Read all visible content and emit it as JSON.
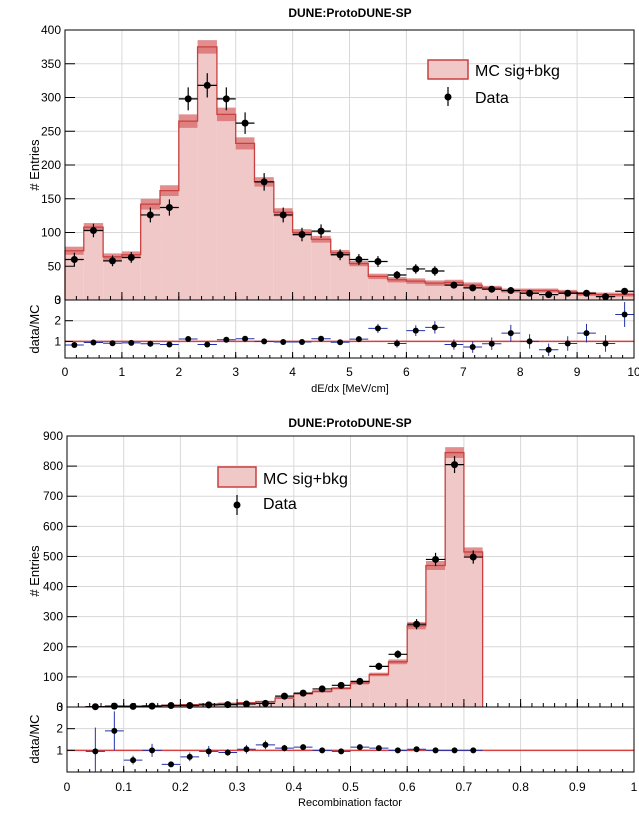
{
  "chart_data": [
    {
      "type": "bar",
      "title": "DUNE:ProtoDUNE-SP",
      "xlabel": "dE/dx [MeV/cm]",
      "ylabel": "# Entries",
      "ratio_ylabel": "data/MC",
      "xlim": [
        0,
        10
      ],
      "ylim": [
        0,
        400
      ],
      "ratio_ylim": [
        0.2,
        3
      ],
      "xticks": [
        "0",
        "1",
        "2",
        "3",
        "4",
        "5",
        "6",
        "7",
        "8",
        "9",
        "10"
      ],
      "yticks": [
        "0",
        "50",
        "100",
        "150",
        "200",
        "250",
        "300",
        "350",
        "400"
      ],
      "ratio_yticks": [
        "1",
        "2",
        "3"
      ],
      "grid": true,
      "legend_position": "top-right",
      "legend": [
        "MC sig+bkg",
        "Data"
      ],
      "bin_edges": [
        0,
        0.33,
        0.67,
        1.0,
        1.33,
        1.67,
        2.0,
        2.33,
        2.67,
        3.0,
        3.33,
        3.67,
        4.0,
        4.33,
        4.67,
        5.0,
        5.33,
        5.67,
        6.0,
        6.33,
        6.67,
        7.0,
        7.33,
        7.67,
        8.0,
        8.33,
        8.67,
        9.0,
        9.33,
        9.67,
        10.0
      ],
      "mc_values": [
        73,
        108,
        64,
        67,
        142,
        162,
        265,
        375,
        275,
        232,
        175,
        130,
        100,
        90,
        70,
        54,
        35,
        30,
        28,
        25,
        26,
        22,
        18,
        14,
        14,
        14,
        12,
        9,
        8,
        8
      ],
      "mc_unc": [
        6,
        6,
        5,
        5,
        8,
        8,
        10,
        10,
        10,
        9,
        7,
        6,
        5,
        5,
        4,
        4,
        4,
        4,
        4,
        4,
        4,
        4,
        3,
        3,
        3,
        3,
        3,
        3,
        3,
        3
      ],
      "data_values": [
        60,
        103,
        58,
        63,
        126,
        137,
        298,
        318,
        298,
        262,
        175,
        126,
        97,
        102,
        67,
        60,
        57,
        37,
        46,
        43,
        22,
        18,
        16,
        14,
        10,
        8,
        10,
        10,
        5,
        13
      ],
      "data_err": [
        10,
        10,
        8,
        8,
        11,
        12,
        17,
        18,
        17,
        16,
        13,
        11,
        10,
        10,
        8,
        8,
        8,
        6,
        7,
        7,
        5,
        4,
        4,
        4,
        3,
        3,
        3,
        3,
        2,
        4
      ],
      "ratio_values": [
        0.83,
        0.95,
        0.91,
        0.93,
        0.89,
        0.85,
        1.12,
        0.85,
        1.08,
        1.13,
        1.0,
        0.97,
        0.97,
        1.13,
        0.96,
        1.11,
        1.63,
        0.9,
        1.52,
        1.68,
        0.85,
        0.73,
        0.89,
        1.4,
        1.0,
        0.6,
        0.9,
        1.4,
        0.9,
        2.3
      ],
      "ratio_err": [
        0.07,
        0.06,
        0.07,
        0.07,
        0.06,
        0.06,
        0.06,
        0.05,
        0.06,
        0.06,
        0.07,
        0.08,
        0.09,
        0.1,
        0.12,
        0.14,
        0.22,
        0.2,
        0.26,
        0.3,
        0.25,
        0.28,
        0.3,
        0.4,
        0.35,
        0.3,
        0.35,
        0.45,
        0.4,
        0.6
      ]
    },
    {
      "type": "bar",
      "title": "DUNE:ProtoDUNE-SP",
      "xlabel": "Recombination factor",
      "ylabel": "# Entries",
      "ratio_ylabel": "data/MC",
      "xlim": [
        0,
        1
      ],
      "ylim": [
        0,
        900
      ],
      "ratio_ylim": [
        0,
        3
      ],
      "xticks": [
        "0",
        "0.1",
        "0.2",
        "0.3",
        "0.4",
        "0.5",
        "0.6",
        "0.7",
        "0.8",
        "0.9",
        "1"
      ],
      "yticks": [
        "0",
        "100",
        "200",
        "300",
        "400",
        "500",
        "600",
        "700",
        "800",
        "900"
      ],
      "ratio_yticks": [
        "1",
        "2",
        "3"
      ],
      "grid": true,
      "legend_position": "top-left",
      "legend": [
        "MC sig+bkg",
        "Data"
      ],
      "bin_edges": [
        0.033,
        0.067,
        0.1,
        0.133,
        0.167,
        0.2,
        0.233,
        0.267,
        0.3,
        0.333,
        0.367,
        0.4,
        0.433,
        0.467,
        0.5,
        0.533,
        0.567,
        0.6,
        0.633,
        0.667,
        0.7,
        0.733
      ],
      "mc_values": [
        1,
        2,
        3,
        4,
        6,
        8,
        10,
        12,
        14,
        18,
        30,
        44,
        52,
        62,
        80,
        108,
        150,
        270,
        470,
        845,
        515
      ],
      "mc_unc": [
        1,
        1,
        1,
        1,
        1,
        2,
        2,
        2,
        2,
        2,
        3,
        3,
        4,
        4,
        5,
        6,
        8,
        12,
        15,
        18,
        15
      ],
      "data_values": [
        1,
        3,
        2,
        3,
        5,
        5,
        7,
        8,
        10,
        12,
        36,
        46,
        60,
        72,
        85,
        135,
        175,
        275,
        490,
        805,
        498
      ],
      "data_err": [
        1,
        2,
        1,
        2,
        2,
        2,
        3,
        3,
        3,
        3,
        6,
        7,
        8,
        8,
        9,
        12,
        13,
        17,
        22,
        28,
        22
      ],
      "ratio_values": [
        0.95,
        1.9,
        0.55,
        1.0,
        0.35,
        0.7,
        0.95,
        0.9,
        1.05,
        1.25,
        1.1,
        1.15,
        1.0,
        0.95,
        1.15,
        1.1,
        1.0,
        1.05,
        1.0,
        1.0,
        1.0
      ],
      "ratio_err": [
        1.1,
        0.9,
        0.2,
        0.3,
        0.1,
        0.2,
        0.25,
        0.15,
        0.2,
        0.2,
        0.15,
        0.12,
        0.1,
        0.08,
        0.07,
        0.06,
        0.05,
        0.05,
        0.04,
        0.03,
        0.04
      ]
    }
  ],
  "colors": {
    "mc_fill": "#f0c8c8",
    "mc_band": "#d86868",
    "mc_line": "#c84040",
    "ratio_line": "#d84040",
    "data": "#000000",
    "ratio_err": "#2233aa"
  }
}
